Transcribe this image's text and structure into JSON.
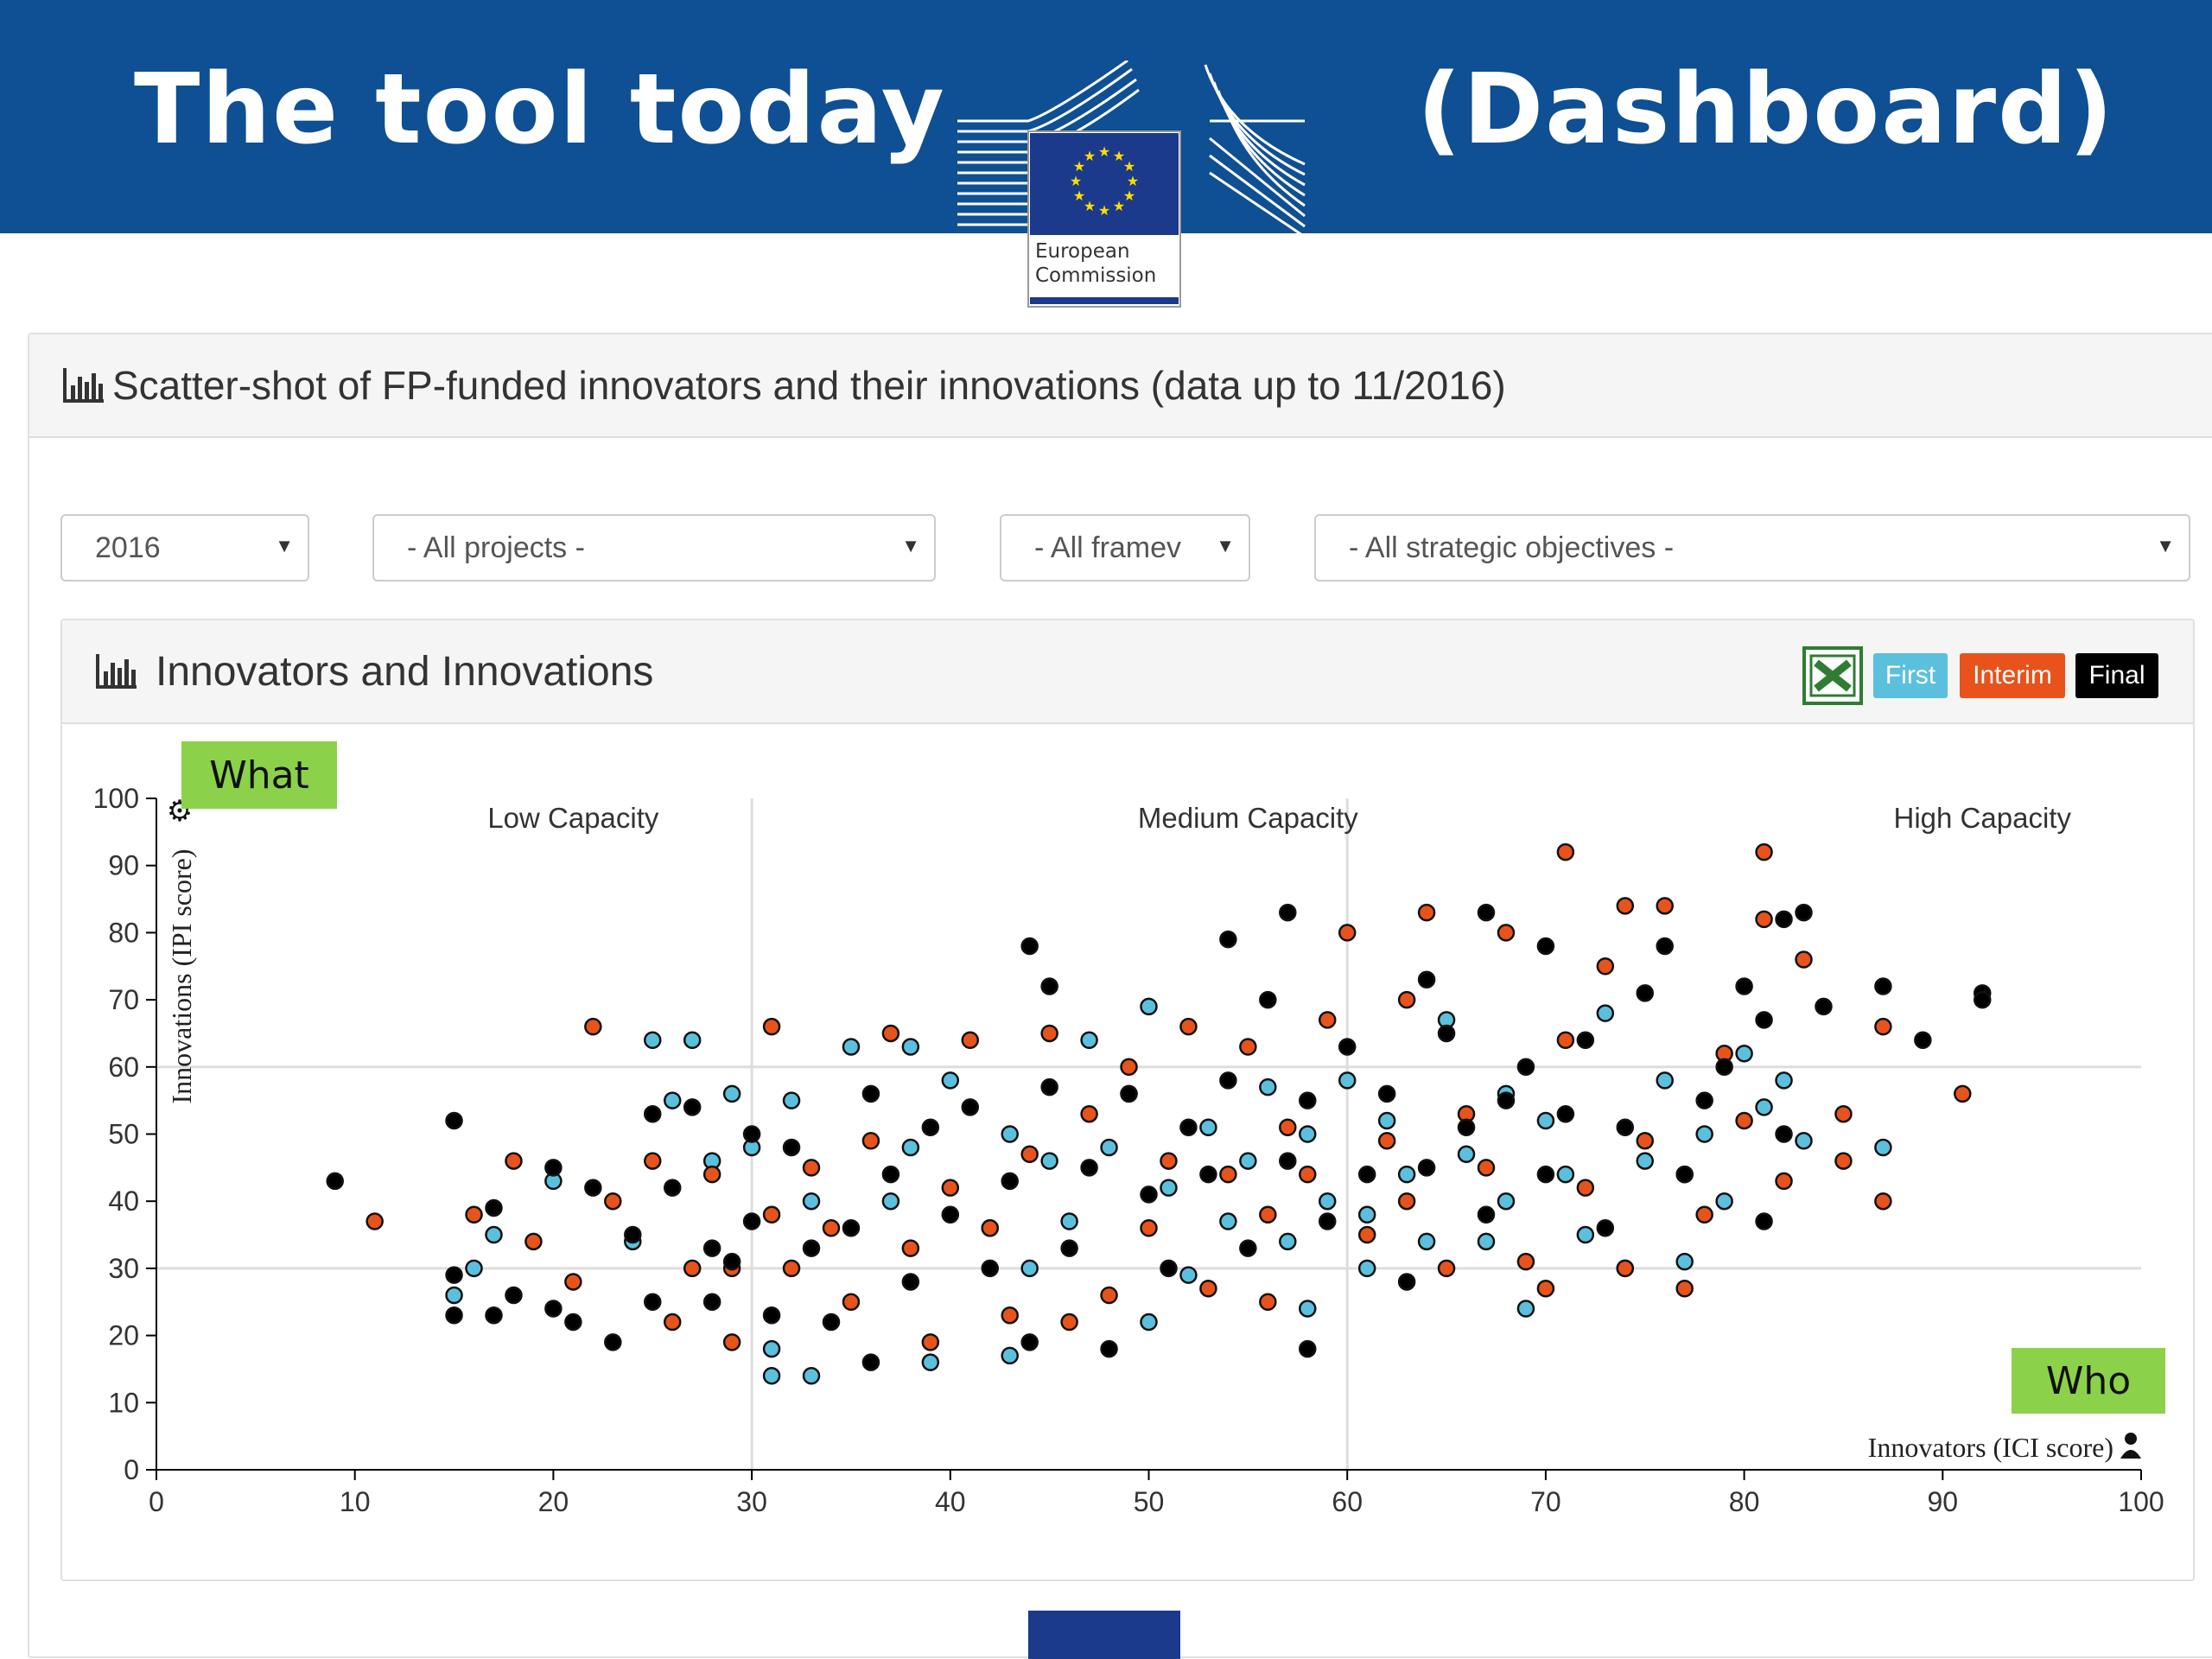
{
  "slide": {
    "title_left": "The tool today",
    "title_right": "(Dashboard)",
    "logo_text_line1": "European",
    "logo_text_line2": "Commission"
  },
  "panel": {
    "title": "Scatter-shot of FP-funded innovators and their innovations (data up to 11/2016)",
    "icon": "bar-chart-icon"
  },
  "filters": {
    "year": "2016",
    "projects": "- All projects -",
    "framework": "- All framev",
    "objectives": "- All strategic objectives -",
    "caret": "▼"
  },
  "chart_panel": {
    "title": "Innovators and Innovations",
    "icon": "bar-chart-icon",
    "export_icon": "excel-icon",
    "legend_buttons": [
      {
        "label": "First",
        "color": "#5bc0de"
      },
      {
        "label": "Interim",
        "color": "#e8531b"
      },
      {
        "label": "Final",
        "color": "#000000"
      }
    ]
  },
  "annotations": {
    "what": "What",
    "who": "Who"
  },
  "chart_data": {
    "type": "scatter",
    "xlabel": "Innovators (ICI score)",
    "ylabel": "Innovations (IPI score)",
    "xlim": [
      0,
      100
    ],
    "ylim": [
      0,
      100
    ],
    "x_ticks": [
      "0",
      "10",
      "20",
      "30",
      "40",
      "50",
      "60",
      "70",
      "80",
      "90",
      "100"
    ],
    "y_ticks": [
      "0",
      "10",
      "20",
      "30",
      "40",
      "50",
      "60",
      "70",
      "80",
      "90",
      "100"
    ],
    "regions": [
      "Low Capacity",
      "Medium Capacity",
      "High Capacity"
    ],
    "region_dividers_x": [
      30,
      60
    ],
    "reference_lines_y": [
      30,
      60
    ],
    "grid": false,
    "series": [
      {
        "name": "First",
        "color": "#5bc0de",
        "points": [
          [
            15,
            26
          ],
          [
            16,
            30
          ],
          [
            17,
            35
          ],
          [
            20,
            43
          ],
          [
            24,
            34
          ],
          [
            25,
            64
          ],
          [
            27,
            64
          ],
          [
            26,
            55
          ],
          [
            28,
            46
          ],
          [
            29,
            56
          ],
          [
            30,
            48
          ],
          [
            31,
            14
          ],
          [
            31,
            18
          ],
          [
            32,
            55
          ],
          [
            33,
            14
          ],
          [
            33,
            40
          ],
          [
            35,
            63
          ],
          [
            37,
            40
          ],
          [
            38,
            48
          ],
          [
            38,
            63
          ],
          [
            39,
            16
          ],
          [
            40,
            58
          ],
          [
            42,
            36
          ],
          [
            43,
            17
          ],
          [
            43,
            50
          ],
          [
            44,
            30
          ],
          [
            45,
            46
          ],
          [
            46,
            37
          ],
          [
            47,
            64
          ],
          [
            48,
            48
          ],
          [
            49,
            56
          ],
          [
            50,
            69
          ],
          [
            50,
            22
          ],
          [
            51,
            42
          ],
          [
            52,
            29
          ],
          [
            53,
            51
          ],
          [
            54,
            37
          ],
          [
            55,
            46
          ],
          [
            56,
            57
          ],
          [
            57,
            34
          ],
          [
            58,
            50
          ],
          [
            58,
            24
          ],
          [
            59,
            40
          ],
          [
            60,
            58
          ],
          [
            61,
            30
          ],
          [
            61,
            38
          ],
          [
            62,
            52
          ],
          [
            63,
            44
          ],
          [
            64,
            34
          ],
          [
            65,
            67
          ],
          [
            66,
            47
          ],
          [
            67,
            34
          ],
          [
            68,
            56
          ],
          [
            68,
            40
          ],
          [
            69,
            24
          ],
          [
            70,
            52
          ],
          [
            71,
            44
          ],
          [
            72,
            35
          ],
          [
            73,
            68
          ],
          [
            74,
            30
          ],
          [
            75,
            46
          ],
          [
            76,
            58
          ],
          [
            77,
            44
          ],
          [
            77,
            31
          ],
          [
            78,
            50
          ],
          [
            79,
            40
          ],
          [
            80,
            62
          ],
          [
            81,
            54
          ],
          [
            82,
            58
          ],
          [
            83,
            49
          ],
          [
            87,
            48
          ]
        ]
      },
      {
        "name": "Interim",
        "color": "#e8531b",
        "points": [
          [
            11,
            37
          ],
          [
            16,
            38
          ],
          [
            18,
            46
          ],
          [
            19,
            34
          ],
          [
            21,
            28
          ],
          [
            22,
            66
          ],
          [
            23,
            40
          ],
          [
            25,
            46
          ],
          [
            26,
            22
          ],
          [
            27,
            30
          ],
          [
            28,
            44
          ],
          [
            29,
            19
          ],
          [
            29,
            30
          ],
          [
            31,
            38
          ],
          [
            31,
            66
          ],
          [
            32,
            30
          ],
          [
            33,
            45
          ],
          [
            34,
            36
          ],
          [
            35,
            25
          ],
          [
            36,
            49
          ],
          [
            37,
            65
          ],
          [
            38,
            33
          ],
          [
            39,
            19
          ],
          [
            40,
            42
          ],
          [
            41,
            64
          ],
          [
            42,
            36
          ],
          [
            43,
            23
          ],
          [
            44,
            47
          ],
          [
            45,
            65
          ],
          [
            46,
            22
          ],
          [
            47,
            53
          ],
          [
            48,
            26
          ],
          [
            49,
            60
          ],
          [
            50,
            36
          ],
          [
            51,
            46
          ],
          [
            52,
            66
          ],
          [
            53,
            27
          ],
          [
            54,
            44
          ],
          [
            55,
            63
          ],
          [
            56,
            25
          ],
          [
            56,
            38
          ],
          [
            57,
            51
          ],
          [
            58,
            44
          ],
          [
            59,
            67
          ],
          [
            60,
            80
          ],
          [
            61,
            35
          ],
          [
            62,
            49
          ],
          [
            63,
            70
          ],
          [
            63,
            40
          ],
          [
            64,
            83
          ],
          [
            65,
            30
          ],
          [
            66,
            53
          ],
          [
            67,
            45
          ],
          [
            68,
            80
          ],
          [
            69,
            31
          ],
          [
            70,
            27
          ],
          [
            71,
            64
          ],
          [
            71,
            92
          ],
          [
            72,
            42
          ],
          [
            73,
            75
          ],
          [
            74,
            30
          ],
          [
            74,
            84
          ],
          [
            75,
            49
          ],
          [
            76,
            84
          ],
          [
            77,
            27
          ],
          [
            78,
            38
          ],
          [
            79,
            62
          ],
          [
            80,
            52
          ],
          [
            81,
            92
          ],
          [
            81,
            82
          ],
          [
            82,
            43
          ],
          [
            83,
            76
          ],
          [
            85,
            53
          ],
          [
            85,
            46
          ],
          [
            87,
            40
          ],
          [
            87,
            66
          ],
          [
            91,
            56
          ]
        ]
      },
      {
        "name": "Final",
        "color": "#000000",
        "points": [
          [
            9,
            43
          ],
          [
            15,
            23
          ],
          [
            15,
            29
          ],
          [
            15,
            52
          ],
          [
            17,
            23
          ],
          [
            17,
            39
          ],
          [
            18,
            26
          ],
          [
            20,
            24
          ],
          [
            20,
            45
          ],
          [
            21,
            22
          ],
          [
            22,
            42
          ],
          [
            23,
            19
          ],
          [
            24,
            35
          ],
          [
            25,
            25
          ],
          [
            25,
            53
          ],
          [
            26,
            42
          ],
          [
            27,
            54
          ],
          [
            28,
            33
          ],
          [
            28,
            25
          ],
          [
            29,
            31
          ],
          [
            30,
            37
          ],
          [
            30,
            50
          ],
          [
            31,
            23
          ],
          [
            32,
            48
          ],
          [
            33,
            33
          ],
          [
            34,
            22
          ],
          [
            35,
            36
          ],
          [
            36,
            16
          ],
          [
            36,
            56
          ],
          [
            37,
            44
          ],
          [
            38,
            28
          ],
          [
            39,
            51
          ],
          [
            40,
            38
          ],
          [
            41,
            54
          ],
          [
            42,
            30
          ],
          [
            43,
            43
          ],
          [
            44,
            78
          ],
          [
            44,
            19
          ],
          [
            45,
            72
          ],
          [
            45,
            57
          ],
          [
            46,
            33
          ],
          [
            47,
            45
          ],
          [
            48,
            18
          ],
          [
            49,
            56
          ],
          [
            50,
            41
          ],
          [
            51,
            30
          ],
          [
            52,
            51
          ],
          [
            53,
            44
          ],
          [
            54,
            79
          ],
          [
            54,
            58
          ],
          [
            55,
            33
          ],
          [
            56,
            70
          ],
          [
            57,
            46
          ],
          [
            57,
            83
          ],
          [
            58,
            18
          ],
          [
            58,
            55
          ],
          [
            59,
            37
          ],
          [
            60,
            63
          ],
          [
            61,
            44
          ],
          [
            62,
            56
          ],
          [
            63,
            28
          ],
          [
            64,
            73
          ],
          [
            64,
            45
          ],
          [
            65,
            65
          ],
          [
            66,
            51
          ],
          [
            67,
            83
          ],
          [
            67,
            38
          ],
          [
            68,
            55
          ],
          [
            69,
            60
          ],
          [
            70,
            78
          ],
          [
            70,
            44
          ],
          [
            71,
            53
          ],
          [
            72,
            64
          ],
          [
            73,
            36
          ],
          [
            74,
            51
          ],
          [
            75,
            71
          ],
          [
            76,
            78
          ],
          [
            77,
            44
          ],
          [
            78,
            55
          ],
          [
            79,
            60
          ],
          [
            80,
            72
          ],
          [
            81,
            37
          ],
          [
            81,
            67
          ],
          [
            82,
            82
          ],
          [
            82,
            50
          ],
          [
            83,
            83
          ],
          [
            84,
            69
          ],
          [
            87,
            72
          ],
          [
            89,
            64
          ],
          [
            92,
            71
          ],
          [
            92,
            70
          ]
        ]
      }
    ]
  }
}
